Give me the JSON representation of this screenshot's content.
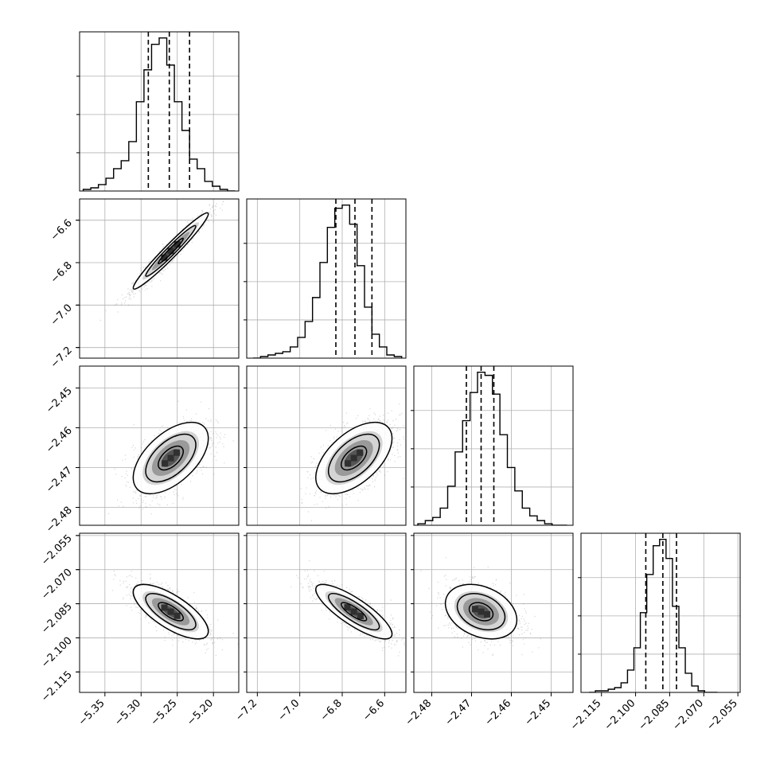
{
  "chart_data": {
    "type": "corner",
    "title": "",
    "parameters": [
      {
        "ticks": [
          -5.35,
          -5.3,
          -5.25,
          -5.2
        ],
        "tick_labels": [
          "−5.35",
          "−5.30",
          "−5.25",
          "−5.20"
        ],
        "range": [
          -5.385,
          -5.165
        ]
      },
      {
        "ticks": [
          -7.2,
          -7.0,
          -6.8,
          -6.6
        ],
        "tick_labels": [
          "−7.2",
          "−7.0",
          "−6.8",
          "−6.6"
        ],
        "range": [
          -7.25,
          -6.5
        ]
      },
      {
        "ticks": [
          -2.48,
          -2.47,
          -2.46,
          -2.45
        ],
        "tick_labels": [
          "−2.48",
          "−2.47",
          "−2.46",
          "−2.45"
        ],
        "range": [
          -2.4845,
          -2.4445
        ]
      },
      {
        "ticks": [
          -2.115,
          -2.1,
          -2.085,
          -2.07,
          -2.055
        ],
        "tick_labels": [
          "−2.115",
          "−2.100",
          "−2.085",
          "−2.070",
          "−2.055"
        ],
        "range": [
          -2.124,
          -2.054
        ]
      }
    ],
    "histograms": [
      {
        "bin_range": [
          -5.38,
          -5.17
        ],
        "counts": [
          1,
          2,
          4,
          8,
          14,
          19,
          31,
          56,
          76,
          92,
          96,
          79,
          56,
          38,
          20,
          14,
          6,
          3,
          1,
          0
        ],
        "quantiles": [
          -5.29,
          -5.261,
          -5.233
        ]
      },
      {
        "bin_range": [
          -7.22,
          -6.52
        ],
        "counts": [
          0,
          1,
          2,
          3,
          4,
          7,
          13,
          23,
          38,
          60,
          82,
          94,
          96,
          84,
          58,
          32,
          15,
          7,
          2,
          1
        ],
        "quantiles": [
          -6.83,
          -6.74,
          -6.66
        ]
      },
      {
        "bin_range": [
          -2.4835,
          -2.446
        ],
        "counts": [
          1,
          3,
          5,
          11,
          25,
          47,
          67,
          85,
          98,
          96,
          84,
          58,
          37,
          22,
          11,
          6,
          3,
          1,
          0,
          0
        ],
        "quantiles": [
          -2.4713,
          -2.4676,
          -2.4644
        ]
      },
      {
        "bin_range": [
          -2.1205,
          -2.064
        ],
        "counts": [
          0,
          1,
          1,
          2,
          3,
          6,
          14,
          28,
          50,
          74,
          92,
          96,
          84,
          54,
          28,
          12,
          4,
          1,
          0,
          0
        ],
        "quantiles": [
          -2.0955,
          -2.088,
          -2.082
        ]
      }
    ],
    "pairs": [
      {
        "x": 0,
        "y": 1,
        "mean": [
          -5.259,
          -6.745
        ],
        "sd": [
          0.026,
          0.09
        ],
        "rho": 0.97
      },
      {
        "x": 0,
        "y": 2,
        "mean": [
          -5.259,
          -2.4676
        ],
        "sd": [
          0.026,
          0.0045
        ],
        "rho": 0.55
      },
      {
        "x": 1,
        "y": 2,
        "mean": [
          -6.745,
          -2.4676
        ],
        "sd": [
          0.09,
          0.0045
        ],
        "rho": 0.55
      },
      {
        "x": 0,
        "y": 3,
        "mean": [
          -5.259,
          -2.0885
        ],
        "sd": [
          0.026,
          0.006
        ],
        "rho": -0.72
      },
      {
        "x": 1,
        "y": 3,
        "mean": [
          -6.745,
          -2.0885
        ],
        "sd": [
          0.09,
          0.006
        ],
        "rho": -0.82
      },
      {
        "x": 2,
        "y": 3,
        "mean": [
          -2.4676,
          -2.0885
        ],
        "sd": [
          0.0045,
          0.006
        ],
        "rho": -0.3
      }
    ],
    "contour_levels": [
      0.5,
      1.0,
      1.5
    ],
    "grid": true,
    "colors": {
      "line": "#000000",
      "grid": "#b0b0b0",
      "points": "#8a8a8a",
      "cells": "#303030"
    }
  }
}
